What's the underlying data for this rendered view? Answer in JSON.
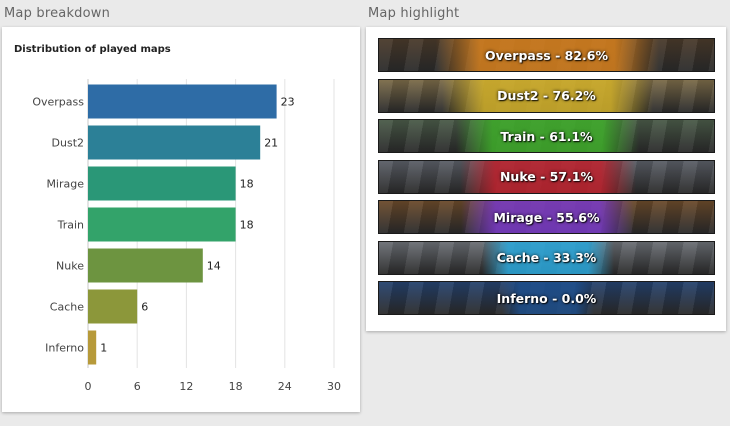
{
  "sections": {
    "breakdown_title": "Map breakdown",
    "highlight_title": "Map highlight"
  },
  "chart_data": {
    "type": "bar",
    "orientation": "horizontal",
    "title": "Distribution of played maps",
    "categories": [
      "Overpass",
      "Dust2",
      "Mirage",
      "Train",
      "Nuke",
      "Cache",
      "Inferno"
    ],
    "values": [
      23,
      21,
      18,
      18,
      14,
      6,
      1
    ],
    "colors": [
      "#2e6ca6",
      "#2c8097",
      "#2a9777",
      "#33a36a",
      "#6d9440",
      "#8c973a",
      "#b79a3a"
    ],
    "xlim": [
      0,
      30
    ],
    "xticks": [
      "0",
      "6",
      "12",
      "18",
      "24",
      "30"
    ],
    "grid": true,
    "data_labels": true,
    "xlabel": "",
    "ylabel": ""
  },
  "map_highlight": [
    {
      "map": "Overpass",
      "label": "Overpass - 82.6%",
      "percent": 82.6,
      "color": "#d9821e",
      "art": "#4a3a2a"
    },
    {
      "map": "Dust2",
      "label": "Dust2 - 76.2%",
      "percent": 76.2,
      "color": "#d4b22a",
      "art": "#7a6a48"
    },
    {
      "map": "Train",
      "label": "Train - 61.1%",
      "percent": 61.1,
      "color": "#3fae2a",
      "art": "#4a5a48"
    },
    {
      "map": "Nuke",
      "label": "Nuke - 57.1%",
      "percent": 57.1,
      "color": "#c0222e",
      "art": "#5a5e66"
    },
    {
      "map": "Mirage",
      "label": "Mirage - 55.6%",
      "percent": 55.6,
      "color": "#7a3ac8",
      "art": "#6a4a2a"
    },
    {
      "map": "Cache",
      "label": "Cache - 33.3%",
      "percent": 33.3,
      "color": "#2aa8dc",
      "art": "#6a6e74"
    },
    {
      "map": "Inferno",
      "label": "Inferno - 0.0%",
      "percent": 0.0,
      "color": "#1e4f8c",
      "art": "#25426e"
    }
  ]
}
